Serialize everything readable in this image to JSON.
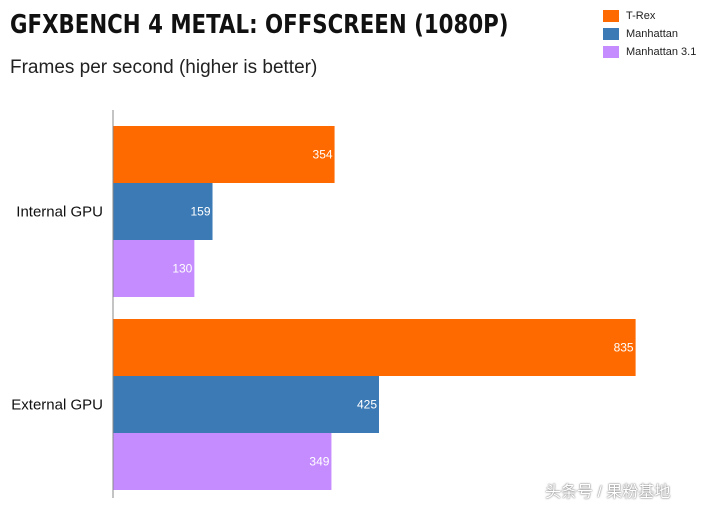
{
  "title": "GFXBENCH 4 METAL: OFFSCREEN (1080P)",
  "subtitle": "Frames per second (higher is better)",
  "watermark": "头条号 / 果粉基地",
  "chart_data": {
    "type": "bar",
    "orientation": "horizontal",
    "categories": [
      "Internal GPU",
      "External GPU"
    ],
    "series": [
      {
        "name": "T-Rex",
        "color": "#ff6a00",
        "values": [
          354,
          835
        ]
      },
      {
        "name": "Manhattan",
        "color": "#3b7ab5",
        "values": [
          159,
          425
        ]
      },
      {
        "name": "Manhattan 3.1",
        "color": "#c58cff",
        "values": [
          130,
          349
        ]
      }
    ],
    "xlim": [
      0,
      850
    ],
    "grid": false,
    "legend_position": "top-right",
    "data_labels": true
  }
}
